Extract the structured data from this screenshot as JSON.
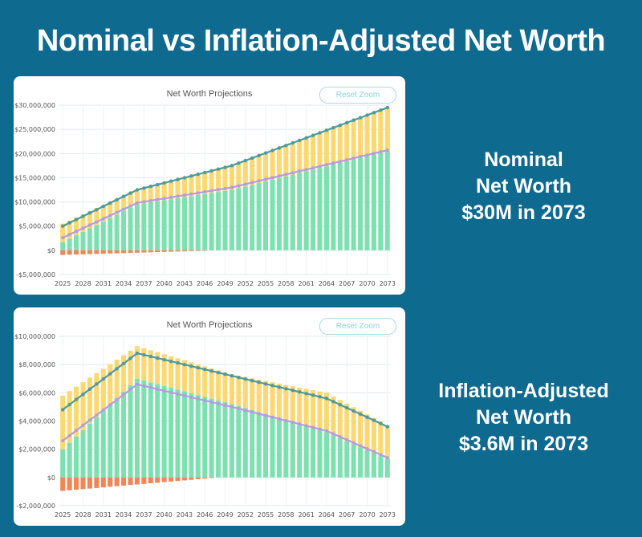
{
  "page": {
    "title": "Nominal vs Inflation-Adjusted Net Worth"
  },
  "colors": {
    "background": "#0f6a8f",
    "asset_bar": "#7ee0b0",
    "top_bar": "#fbd872",
    "debt_bar": "#ee8755",
    "net_worth_line": "#4f9a9b",
    "second_line": "#b79be0"
  },
  "panels": [
    {
      "chart_title": "Net Worth Projections",
      "reset_label": "Reset Zoom",
      "side_label": [
        "Nominal",
        "Net Worth",
        "$30M in 2073"
      ]
    },
    {
      "chart_title": "Net Worth Projections",
      "reset_label": "Reset Zoom",
      "side_label": [
        "Inflation-Adjusted",
        "Net Worth",
        "$3.6M in 2073"
      ]
    }
  ],
  "chart_data": [
    {
      "type": "bar",
      "stacked": true,
      "title": "Net Worth Projections",
      "grid": true,
      "ylim": [
        -5000000,
        30000000
      ],
      "yticks": [
        30000000,
        25000000,
        20000000,
        15000000,
        10000000,
        5000000,
        0,
        -5000000
      ],
      "ytick_labels": [
        "$30,000,000",
        "$25,000,000",
        "$20,000,000",
        "$15,000,000",
        "$10,000,000",
        "$5,000,000",
        "$0",
        "-$5,000,000"
      ],
      "xtick_labels": [
        "2025",
        "2028",
        "2031",
        "2034",
        "2037",
        "2040",
        "2043",
        "2046",
        "2049",
        "2052",
        "2055",
        "2058",
        "2061",
        "2064",
        "2067",
        "2070",
        "2073"
      ],
      "x_start": 2025,
      "x_end": 2073,
      "anchors": {
        "green": [
          [
            2025,
            1.7
          ],
          [
            2036,
            9.5
          ],
          [
            2050,
            12.5
          ],
          [
            2073,
            20.5
          ]
        ],
        "yellow": [
          [
            2025,
            3.8
          ],
          [
            2036,
            3.0
          ],
          [
            2050,
            5.0
          ],
          [
            2073,
            9.0
          ]
        ],
        "debt": [
          [
            2025,
            -0.95
          ],
          [
            2048,
            0
          ],
          [
            2073,
            0
          ]
        ],
        "line": [
          [
            2025,
            5.0
          ],
          [
            2036,
            12.5
          ],
          [
            2050,
            17.5
          ],
          [
            2073,
            29.5
          ]
        ],
        "line2": [
          [
            2025,
            2.6
          ],
          [
            2036,
            9.8
          ],
          [
            2050,
            13.0
          ],
          [
            2073,
            20.7
          ]
        ]
      },
      "value_unit": "millions"
    },
    {
      "type": "bar",
      "stacked": true,
      "title": "Net Worth Projections",
      "grid": true,
      "ylim": [
        -2000000,
        10000000
      ],
      "yticks": [
        10000000,
        8000000,
        6000000,
        4000000,
        2000000,
        0,
        -2000000
      ],
      "ytick_labels": [
        "$10,000,000",
        "$8,000,000",
        "$6,000,000",
        "$4,000,000",
        "$2,000,000",
        "$0",
        "-$2,000,000"
      ],
      "xtick_labels": [
        "2025",
        "2028",
        "2031",
        "2034",
        "2037",
        "2040",
        "2043",
        "2046",
        "2049",
        "2052",
        "2055",
        "2058",
        "2061",
        "2064",
        "2067",
        "2070",
        "2073"
      ],
      "x_start": 2025,
      "x_end": 2073,
      "anchors": {
        "green": [
          [
            2025,
            2.0
          ],
          [
            2036,
            7.0
          ],
          [
            2050,
            5.2
          ],
          [
            2064,
            3.2
          ],
          [
            2073,
            1.3
          ]
        ],
        "yellow": [
          [
            2025,
            3.8
          ],
          [
            2036,
            2.3
          ],
          [
            2050,
            2.1
          ],
          [
            2064,
            2.8
          ],
          [
            2073,
            2.4
          ]
        ],
        "debt": [
          [
            2025,
            -0.95
          ],
          [
            2048,
            0
          ],
          [
            2073,
            0
          ]
        ],
        "line": [
          [
            2025,
            4.8
          ],
          [
            2036,
            8.8
          ],
          [
            2050,
            7.2
          ],
          [
            2064,
            5.6
          ],
          [
            2073,
            3.6
          ]
        ],
        "line2": [
          [
            2025,
            2.6
          ],
          [
            2036,
            6.6
          ],
          [
            2050,
            5.0
          ],
          [
            2064,
            3.3
          ],
          [
            2073,
            1.4
          ]
        ]
      },
      "value_unit": "millions"
    }
  ]
}
